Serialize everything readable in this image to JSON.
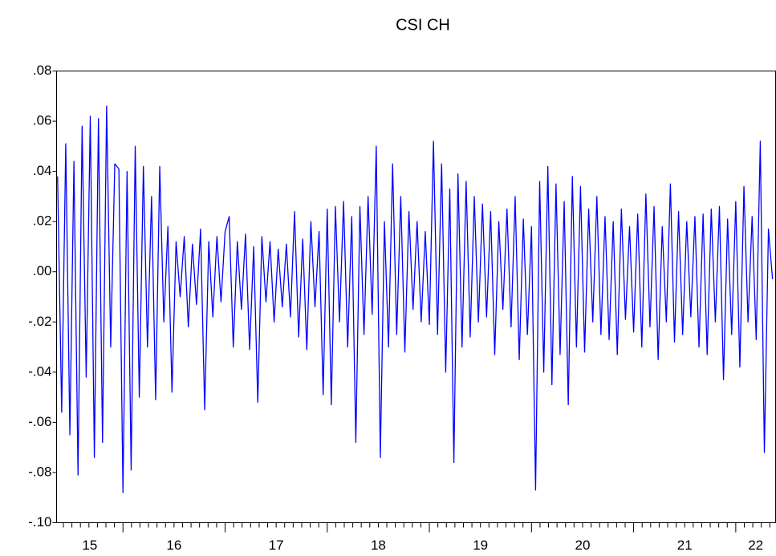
{
  "chart_data": {
    "type": "line",
    "title": "CSI CH",
    "x": [
      2015.36,
      2015.4,
      2015.44,
      2015.48,
      2015.52,
      2015.56,
      2015.6,
      2015.64,
      2015.68,
      2015.72,
      2015.76,
      2015.8,
      2015.84,
      2015.88,
      2015.92,
      2015.96,
      2016.0,
      2016.04,
      2016.08,
      2016.12,
      2016.16,
      2016.2,
      2016.24,
      2016.28,
      2016.32,
      2016.36,
      2016.4,
      2016.44,
      2016.48,
      2016.52,
      2016.56,
      2016.6,
      2016.64,
      2016.68,
      2016.72,
      2016.76,
      2016.8,
      2016.84,
      2016.88,
      2016.92,
      2016.96,
      2017.0,
      2017.04,
      2017.08,
      2017.12,
      2017.16,
      2017.2,
      2017.24,
      2017.28,
      2017.32,
      2017.36,
      2017.4,
      2017.44,
      2017.48,
      2017.52,
      2017.56,
      2017.6,
      2017.64,
      2017.68,
      2017.72,
      2017.76,
      2017.8,
      2017.84,
      2017.88,
      2017.92,
      2017.96,
      2018.0,
      2018.04,
      2018.08,
      2018.12,
      2018.16,
      2018.2,
      2018.24,
      2018.28,
      2018.32,
      2018.36,
      2018.4,
      2018.44,
      2018.48,
      2018.52,
      2018.56,
      2018.6,
      2018.64,
      2018.68,
      2018.72,
      2018.76,
      2018.8,
      2018.84,
      2018.88,
      2018.92,
      2018.96,
      2019.0,
      2019.04,
      2019.08,
      2019.12,
      2019.16,
      2019.2,
      2019.24,
      2019.28,
      2019.32,
      2019.36,
      2019.4,
      2019.44,
      2019.48,
      2019.52,
      2019.56,
      2019.6,
      2019.64,
      2019.68,
      2019.72,
      2019.76,
      2019.8,
      2019.84,
      2019.88,
      2019.92,
      2019.96,
      2020.0,
      2020.04,
      2020.08,
      2020.12,
      2020.16,
      2020.2,
      2020.24,
      2020.28,
      2020.32,
      2020.36,
      2020.4,
      2020.44,
      2020.48,
      2020.52,
      2020.56,
      2020.6,
      2020.64,
      2020.68,
      2020.72,
      2020.76,
      2020.8,
      2020.84,
      2020.88,
      2020.92,
      2020.96,
      2021.0,
      2021.04,
      2021.08,
      2021.12,
      2021.16,
      2021.2,
      2021.24,
      2021.28,
      2021.32,
      2021.36,
      2021.4,
      2021.44,
      2021.48,
      2021.52,
      2021.56,
      2021.6,
      2021.64,
      2021.68,
      2021.72,
      2021.76,
      2021.8,
      2021.84,
      2021.88,
      2021.92,
      2021.96,
      2022.0,
      2022.04,
      2022.08,
      2022.12,
      2022.16,
      2022.2,
      2022.24,
      2022.28,
      2022.32,
      2022.36
    ],
    "series": [
      {
        "color": "#0000ff",
        "values": [
          0.038,
          -0.056,
          0.051,
          -0.065,
          0.044,
          -0.081,
          0.058,
          -0.042,
          0.062,
          -0.074,
          0.061,
          -0.068,
          0.066,
          -0.03,
          0.043,
          0.041,
          -0.088,
          0.04,
          -0.079,
          0.05,
          -0.05,
          0.042,
          -0.03,
          0.03,
          -0.051,
          0.042,
          -0.02,
          0.018,
          -0.048,
          0.012,
          -0.01,
          0.014,
          -0.022,
          0.011,
          -0.013,
          0.017,
          -0.055,
          0.012,
          -0.018,
          0.014,
          -0.012,
          0.016,
          0.022,
          -0.03,
          0.012,
          -0.015,
          0.015,
          -0.031,
          0.01,
          -0.052,
          0.014,
          -0.012,
          0.012,
          -0.02,
          0.009,
          -0.014,
          0.011,
          -0.018,
          0.024,
          -0.026,
          0.013,
          -0.031,
          0.02,
          -0.014,
          0.016,
          -0.049,
          0.025,
          -0.053,
          0.026,
          -0.02,
          0.028,
          -0.03,
          0.022,
          -0.068,
          0.026,
          -0.025,
          0.03,
          -0.017,
          0.05,
          -0.074,
          0.02,
          -0.03,
          0.043,
          -0.025,
          0.03,
          -0.032,
          0.024,
          -0.015,
          0.02,
          -0.02,
          0.016,
          -0.021,
          0.052,
          -0.025,
          0.043,
          -0.04,
          0.033,
          -0.076,
          0.039,
          -0.03,
          0.036,
          -0.026,
          0.03,
          -0.02,
          0.027,
          -0.018,
          0.024,
          -0.033,
          0.02,
          -0.015,
          0.025,
          -0.022,
          0.03,
          -0.035,
          0.021,
          -0.025,
          0.018,
          -0.087,
          0.036,
          -0.04,
          0.042,
          -0.045,
          0.035,
          -0.033,
          0.028,
          -0.053,
          0.038,
          -0.03,
          0.034,
          -0.032,
          0.025,
          -0.02,
          0.03,
          -0.025,
          0.022,
          -0.027,
          0.02,
          -0.033,
          0.025,
          -0.019,
          0.018,
          -0.024,
          0.023,
          -0.03,
          0.031,
          -0.022,
          0.026,
          -0.035,
          0.018,
          -0.02,
          0.035,
          -0.028,
          0.024,
          -0.025,
          0.02,
          -0.018,
          0.022,
          -0.03,
          0.023,
          -0.033,
          0.025,
          -0.02,
          0.026,
          -0.043,
          0.021,
          -0.025,
          0.028,
          -0.038,
          0.034,
          -0.02,
          0.022,
          -0.027,
          0.052,
          -0.072,
          0.017,
          -0.003
        ]
      }
    ],
    "xlim": [
      2015.35,
      2022.39
    ],
    "xticks": [
      {
        "value": 2015,
        "label": "15"
      },
      {
        "value": 2016,
        "label": "16"
      },
      {
        "value": 2017,
        "label": "17"
      },
      {
        "value": 2018,
        "label": "18"
      },
      {
        "value": 2019,
        "label": "19"
      },
      {
        "value": 2020,
        "label": "20"
      },
      {
        "value": 2021,
        "label": "21"
      },
      {
        "value": 2022,
        "label": "22"
      }
    ],
    "ylim": [
      -0.1,
      0.08
    ],
    "yticks": [
      {
        "value": -0.1,
        "label": "-.10"
      },
      {
        "value": -0.08,
        "label": "-.08"
      },
      {
        "value": -0.06,
        "label": "-.06"
      },
      {
        "value": -0.04,
        "label": "-.04"
      },
      {
        "value": -0.02,
        "label": "-.02"
      },
      {
        "value": 0,
        "label": ".00"
      },
      {
        "value": 0.02,
        "label": ".02"
      },
      {
        "value": 0.04,
        "label": ".04"
      },
      {
        "value": 0.06,
        "label": ".06"
      },
      {
        "value": 0.08,
        "label": ".08"
      }
    ]
  }
}
